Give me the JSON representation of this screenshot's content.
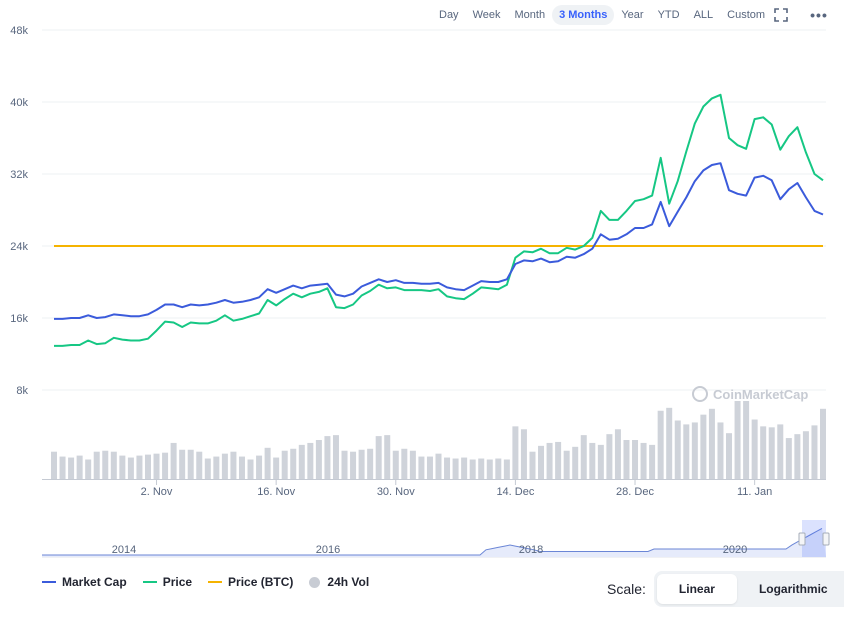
{
  "toolbar": {
    "ranges": [
      "Day",
      "Week",
      "Month",
      "3 Months",
      "Year",
      "YTD",
      "ALL",
      "Custom"
    ],
    "active": "3 Months",
    "fullscreen_icon": "fullscreen-icon",
    "more_icon": "more-horizontal-icon"
  },
  "watermark": "CoinMarketCap",
  "legend": {
    "market_cap": "Market Cap",
    "price": "Price",
    "price_btc": "Price (BTC)",
    "vol": "24h Vol"
  },
  "scale": {
    "label": "Scale:",
    "linear": "Linear",
    "log": "Logarithmic",
    "active": "Linear"
  },
  "colors": {
    "market_cap": "#3b5bdb",
    "price": "#16c784",
    "price_btc": "#f5b300",
    "vol": "#cfd3da"
  },
  "chart_data": {
    "type": "line",
    "title": "",
    "xlabel": "",
    "ylabel": "",
    "ylim": [
      0,
      50000
    ],
    "yticks": [
      8000,
      16000,
      24000,
      32000,
      40000,
      48000
    ],
    "ytick_labels": [
      "8k",
      "16k",
      "24k",
      "32k",
      "40k",
      "48k"
    ],
    "x_start": "2020-10-21",
    "xtick_labels": [
      "2. Nov",
      "16. Nov",
      "30. Nov",
      "14. Dec",
      "28. Dec",
      "11. Jan"
    ],
    "xtick_dates": [
      "2020-11-02",
      "2020-11-16",
      "2020-11-30",
      "2020-12-14",
      "2020-12-28",
      "2021-01-11"
    ],
    "grid": true,
    "legend_position": "bottom-left",
    "series": [
      {
        "name": "Market Cap",
        "values": [
          15900,
          15900,
          16000,
          16000,
          16300,
          16000,
          16100,
          16400,
          16300,
          16200,
          16200,
          16400,
          16900,
          17500,
          17500,
          17200,
          17500,
          17400,
          17500,
          17700,
          18000,
          17700,
          17800,
          18000,
          18300,
          19200,
          18800,
          19200,
          19600,
          19300,
          19600,
          19700,
          19800,
          18600,
          18400,
          18700,
          19500,
          19900,
          20300,
          20000,
          20200,
          19900,
          19900,
          19800,
          19800,
          19900,
          19400,
          19200,
          19100,
          19600,
          20100,
          20000,
          20000,
          20300,
          22000,
          22400,
          22300,
          22600,
          22200,
          22300,
          22800,
          22700,
          23100,
          23700,
          25300,
          24700,
          24800,
          25300,
          26000,
          26000,
          26400,
          28900,
          26200,
          27800,
          29400,
          31200,
          32400,
          33000,
          33200,
          30200,
          29800,
          29600,
          31600,
          31800,
          31300,
          29200,
          30300,
          31000,
          29400,
          27900,
          27500
        ]
      },
      {
        "name": "Price",
        "values": [
          12900,
          12900,
          13000,
          13000,
          13500,
          13100,
          13200,
          13800,
          13600,
          13500,
          13500,
          13700,
          14600,
          15600,
          15500,
          15000,
          15500,
          15400,
          15400,
          15700,
          16300,
          15700,
          15900,
          16200,
          16500,
          18000,
          17400,
          18100,
          18700,
          18300,
          18700,
          18900,
          19300,
          17200,
          17100,
          17500,
          18500,
          19000,
          19700,
          19300,
          19400,
          19100,
          19100,
          19100,
          19000,
          19200,
          18400,
          18200,
          18100,
          18700,
          19400,
          19300,
          19200,
          19700,
          22700,
          23400,
          23300,
          23700,
          23200,
          23200,
          23800,
          23600,
          24000,
          24900,
          27900,
          26900,
          26900,
          27900,
          29000,
          29200,
          29600,
          33800,
          28700,
          31200,
          34500,
          37600,
          39500,
          40400,
          40800,
          36000,
          35200,
          34800,
          38100,
          38300,
          37500,
          34700,
          36200,
          37200,
          34400,
          32000,
          31300
        ]
      },
      {
        "name": "Price (BTC)",
        "values": [
          24000,
          24000,
          24000,
          24000,
          24000,
          24000,
          24000,
          24000,
          24000,
          24000,
          24000,
          24000,
          24000,
          24000,
          24000,
          24000,
          24000,
          24000,
          24000,
          24000,
          24000,
          24000,
          24000,
          24000,
          24000,
          24000,
          24000,
          24000,
          24000,
          24000,
          24000,
          24000,
          24000,
          24000,
          24000,
          24000,
          24000,
          24000,
          24000,
          24000,
          24000,
          24000,
          24000,
          24000,
          24000,
          24000,
          24000,
          24000,
          24000,
          24000,
          24000,
          24000,
          24000,
          24000,
          24000,
          24000,
          24000,
          24000,
          24000,
          24000,
          24000,
          24000,
          24000,
          24000,
          24000,
          24000,
          24000,
          24000,
          24000,
          24000,
          24000,
          24000,
          24000,
          24000,
          24000,
          24000,
          24000,
          24000,
          24000,
          24000,
          24000,
          24000,
          24000,
          24000,
          24000,
          24000,
          24000,
          24000,
          24000,
          24000,
          24000
        ]
      },
      {
        "name": "24h Vol",
        "values": [
          28,
          23,
          22,
          24,
          20,
          28,
          29,
          28,
          24,
          22,
          24,
          25,
          26,
          27,
          37,
          30,
          30,
          28,
          21,
          23,
          26,
          28,
          23,
          20,
          24,
          32,
          22,
          29,
          31,
          35,
          37,
          40,
          44,
          45,
          29,
          28,
          30,
          31,
          44,
          45,
          29,
          31,
          29,
          23,
          23,
          26,
          22,
          21,
          22,
          20,
          21,
          20,
          21,
          20,
          54,
          51,
          28,
          34,
          37,
          38,
          29,
          33,
          45,
          37,
          35,
          46,
          51,
          40,
          40,
          37,
          35,
          70,
          73,
          60,
          56,
          58,
          66,
          72,
          58,
          47,
          80,
          80,
          61,
          54,
          53,
          56,
          42,
          46,
          49,
          55,
          72
        ]
      }
    ]
  },
  "navigator": {
    "labels": [
      "2014",
      "2016",
      "2018",
      "2020"
    ]
  }
}
